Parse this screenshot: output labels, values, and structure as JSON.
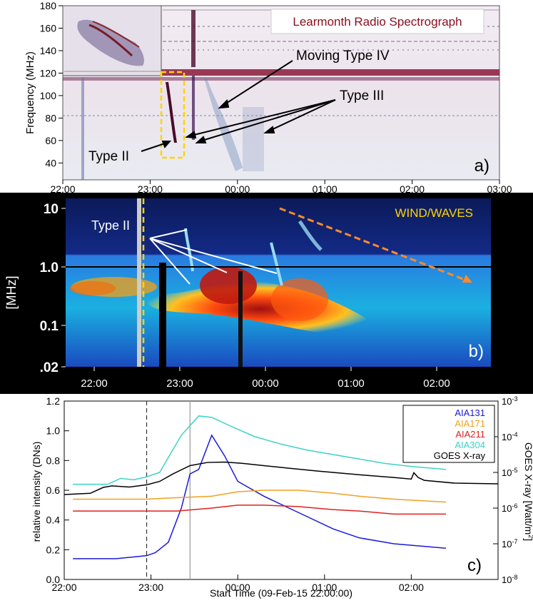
{
  "panel_a": {
    "title": "Learmonth Radio Spectrograph",
    "ylabel": "Frequency (MHz)",
    "y_ticks": [
      "180",
      "160",
      "140",
      "120",
      "100",
      "80",
      "60",
      "40"
    ],
    "x_ticks": [
      "22:00",
      "23:00",
      "00:00",
      "01:00",
      "02:00",
      "03:00"
    ],
    "annotations": {
      "type_ii": "Type II",
      "type_iii": "Type III",
      "moving_type_iv": "Moving Type IV"
    },
    "panel_label": "a)",
    "colors": {
      "background": "#e2d8e3",
      "burst": "#5a1033",
      "box": "#ffd400"
    }
  },
  "panel_b": {
    "title": "WIND/WAVES",
    "ylabel": "[MHz]",
    "y_ticks": [
      "10",
      "1.0",
      "0.1",
      ".02"
    ],
    "x_ticks": [
      "22:00",
      "23:00",
      "00:00",
      "01:00",
      "02:00"
    ],
    "annotations": {
      "type_ii": "Type II"
    },
    "panel_label": "b)",
    "colors": {
      "background": "#0a1a6e",
      "hot": "#e63b12",
      "title": "#ffd400",
      "arrow": "#ff8a2a"
    }
  },
  "panel_c": {
    "ylabel_left": "relative intensity (DNs)",
    "ylabel_right": "GOES X-ray [Watt/m",
    "ylabel_right_sup": "2",
    "ylabel_right_end": "]",
    "xlabel": "Start Time (09-Feb-15 22:00:00)",
    "y_ticks": [
      "0.0",
      "0.2",
      "0.4",
      "0.6",
      "0.8",
      "1.0",
      "1.2"
    ],
    "right_ticks": [
      {
        "base": "10",
        "exp": "-3"
      },
      {
        "base": "10",
        "exp": "-4"
      },
      {
        "base": "10",
        "exp": "-5"
      },
      {
        "base": "10",
        "exp": "-6"
      },
      {
        "base": "10",
        "exp": "-7"
      },
      {
        "base": "10",
        "exp": "-8"
      }
    ],
    "x_ticks": [
      "22:00",
      "23:00",
      "00:00",
      "01:00",
      "02:00"
    ],
    "panel_label": "c)"
  },
  "chart_data": [
    {
      "type": "heatmap",
      "title": "Learmonth Radio Spectrograph",
      "ylabel": "Frequency (MHz)",
      "xlim": [
        "22:00",
        "03:00"
      ],
      "ylim": [
        25,
        180
      ],
      "annotations": [
        "Type II",
        "Type III",
        "Moving Type IV"
      ]
    },
    {
      "type": "heatmap",
      "title": "WIND/WAVES",
      "ylabel": "[MHz]",
      "xlim": [
        "22:00",
        "02:50"
      ],
      "ylim": [
        0.02,
        14
      ],
      "y_scale": "log",
      "annotations": [
        "Type II"
      ]
    },
    {
      "type": "line",
      "xlabel": "Start Time (09-Feb-15 22:00:00)",
      "ylabel": "relative intensity (DNs)",
      "ylabel_right": "GOES X-ray [Watt/m2]",
      "ylim": [
        0.0,
        1.2
      ],
      "ylim_right_log": [
        1e-08,
        0.001
      ],
      "xlim_hours": [
        22.0,
        25.0
      ],
      "x_unit": "hours since 00:00 on 09-Feb-15 (24.0 = 00:00 next day)",
      "vlines": [
        {
          "x": 22.95,
          "style": "dashed"
        },
        {
          "x": 23.45,
          "style": "solid"
        }
      ],
      "legend_position": "top-right",
      "series": [
        {
          "name": "AIA131",
          "color": "#1a1adc",
          "axis": "left",
          "x": [
            22.1,
            22.6,
            22.95,
            23.05,
            23.2,
            23.35,
            23.45,
            23.55,
            23.7,
            23.85,
            24.0,
            24.3,
            24.7,
            25.1,
            25.4,
            25.8,
            26.4
          ],
          "y": [
            0.14,
            0.14,
            0.16,
            0.18,
            0.25,
            0.48,
            0.71,
            0.74,
            0.97,
            0.83,
            0.66,
            0.56,
            0.45,
            0.34,
            0.28,
            0.24,
            0.21
          ]
        },
        {
          "name": "AIA171",
          "color": "#f0a020",
          "axis": "left",
          "x": [
            22.1,
            22.6,
            22.95,
            23.3,
            23.7,
            24.0,
            24.3,
            24.7,
            25.1,
            25.4,
            25.8,
            26.4
          ],
          "y": [
            0.54,
            0.54,
            0.54,
            0.55,
            0.56,
            0.59,
            0.6,
            0.6,
            0.58,
            0.56,
            0.54,
            0.52
          ]
        },
        {
          "name": "AIA211",
          "color": "#e02020",
          "axis": "left",
          "x": [
            22.1,
            22.6,
            22.95,
            23.3,
            23.7,
            24.0,
            24.3,
            24.7,
            25.1,
            25.4,
            25.8,
            26.4
          ],
          "y": [
            0.46,
            0.46,
            0.46,
            0.46,
            0.48,
            0.5,
            0.5,
            0.49,
            0.47,
            0.46,
            0.44,
            0.44
          ]
        },
        {
          "name": "AIA304",
          "color": "#3cd2c8",
          "axis": "left",
          "x": [
            22.1,
            22.5,
            22.65,
            22.8,
            22.95,
            23.1,
            23.2,
            23.35,
            23.55,
            23.7,
            23.85,
            24.0,
            24.2,
            24.5,
            24.8,
            25.1,
            25.4,
            25.7,
            26.0,
            26.4
          ],
          "y": [
            0.64,
            0.64,
            0.68,
            0.67,
            0.69,
            0.72,
            0.82,
            0.97,
            1.1,
            1.09,
            1.05,
            1.01,
            0.96,
            0.91,
            0.87,
            0.84,
            0.81,
            0.78,
            0.76,
            0.74
          ]
        },
        {
          "name": "GOES X-ray",
          "color": "#000000",
          "axis": "right",
          "x": [
            22.0,
            22.3,
            22.45,
            22.55,
            22.75,
            22.95,
            23.1,
            23.25,
            23.45,
            23.65,
            23.85,
            24.05,
            24.3,
            24.6,
            24.9,
            25.2,
            25.5,
            25.8,
            26.0,
            26.03,
            26.08,
            26.15,
            26.5,
            27.0
          ],
          "y": [
            2.4e-06,
            2.6e-06,
            3.8e-06,
            4.2e-06,
            3.9e-06,
            4.5e-06,
            5.6e-06,
            9e-06,
            1.55e-05,
            1.9e-05,
            1.95e-05,
            1.8e-05,
            1.55e-05,
            1.3e-05,
            1.1e-05,
            9.5e-06,
            8.2e-06,
            7.2e-06,
            6.5e-06,
            9.8e-06,
            7.2e-06,
            6e-06,
            5e-06,
            4.8e-06
          ]
        }
      ]
    }
  ]
}
